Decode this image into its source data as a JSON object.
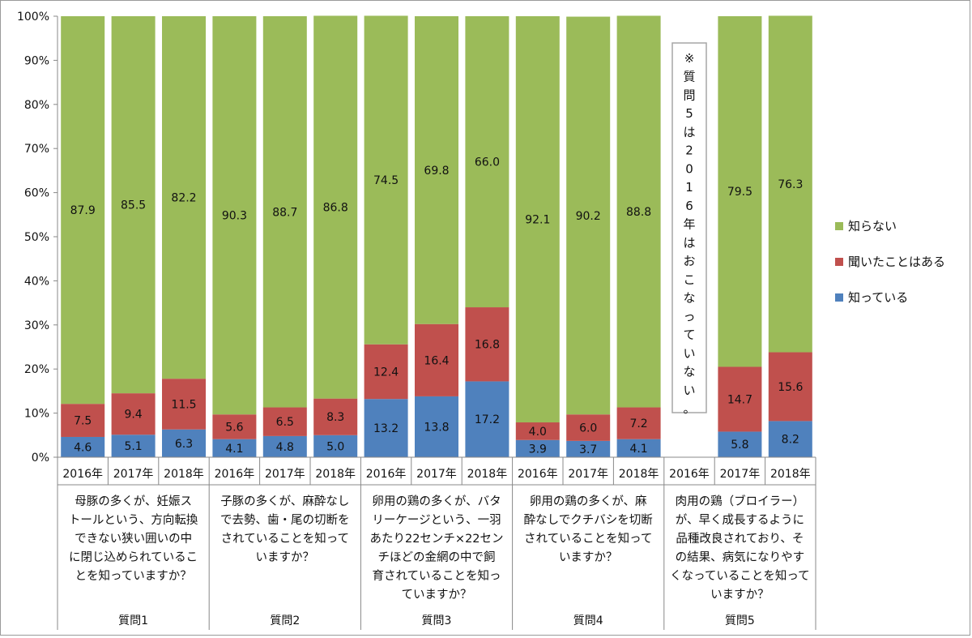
{
  "chart_data": {
    "type": "bar",
    "stacked": true,
    "percent": true,
    "ylim": [
      0,
      100
    ],
    "y_ticks": [
      "0%",
      "10%",
      "20%",
      "30%",
      "40%",
      "50%",
      "60%",
      "70%",
      "80%",
      "90%",
      "100%"
    ],
    "series": [
      {
        "name": "知っている",
        "color": "#4f81bd"
      },
      {
        "name": "聞いたことはある",
        "color": "#c0504d"
      },
      {
        "name": "知らない",
        "color": "#9bbb59"
      }
    ],
    "legend_position": "right",
    "groups": [
      {
        "name": "質問1",
        "description": [
          "母豚の多くが、妊娠ス",
          "トールという、方向転換",
          "できない狭い囲いの中",
          "に閉じ込められているこ",
          "とを知っていますか？"
        ],
        "bars": [
          {
            "year": "2016年",
            "values": [
              4.6,
              7.5,
              87.9
            ]
          },
          {
            "year": "2017年",
            "values": [
              5.1,
              9.4,
              85.5
            ]
          },
          {
            "year": "2018年",
            "values": [
              6.3,
              11.5,
              82.2
            ]
          }
        ]
      },
      {
        "name": "質問2",
        "description": [
          "子豚の多くが、麻酔なし",
          "で去勢、歯・尾の切断を",
          "されていることを知って",
          "いますか？"
        ],
        "bars": [
          {
            "year": "2016年",
            "values": [
              4.1,
              5.6,
              90.3
            ]
          },
          {
            "year": "2017年",
            "values": [
              4.8,
              6.5,
              88.7
            ]
          },
          {
            "year": "2018年",
            "values": [
              5.0,
              8.3,
              86.8
            ]
          }
        ]
      },
      {
        "name": "質問3",
        "description": [
          "卵用の鶏の多くが、バタ",
          "リーケージという、一羽",
          "あたり22センチ×22セン",
          "チほどの金網の中で飼",
          "育されていることを知っ",
          "ていますか？"
        ],
        "bars": [
          {
            "year": "2016年",
            "values": [
              13.2,
              12.4,
              74.5
            ]
          },
          {
            "year": "2017年",
            "values": [
              13.8,
              16.4,
              69.8
            ]
          },
          {
            "year": "2018年",
            "values": [
              17.2,
              16.8,
              66.0
            ]
          }
        ]
      },
      {
        "name": "質問4",
        "description": [
          "卵用の鶏の多くが、麻",
          "酔なしでクチバシを切断",
          "されていることを知って",
          "いますか？"
        ],
        "bars": [
          {
            "year": "2016年",
            "values": [
              3.9,
              4.0,
              92.1
            ]
          },
          {
            "year": "2017年",
            "values": [
              3.7,
              6.0,
              90.2
            ]
          },
          {
            "year": "2018年",
            "values": [
              4.1,
              7.2,
              88.8
            ]
          }
        ]
      },
      {
        "name": "質問5",
        "description": [
          "肉用の鶏（ブロイラー）",
          "が、早く成長するように",
          "品種改良されており、そ",
          "の結果、病気になりやす",
          "くなっていることを知って",
          "いますか？"
        ],
        "bars": [
          {
            "year": "2016年",
            "values": null
          },
          {
            "year": "2017年",
            "values": [
              5.8,
              14.7,
              79.5
            ]
          },
          {
            "year": "2018年",
            "values": [
              8.2,
              15.6,
              76.3
            ]
          }
        ]
      }
    ],
    "annotation": [
      "※",
      "質",
      "問",
      "5",
      "は",
      "2",
      "0",
      "1",
      "6",
      "年",
      "は",
      "お",
      "こ",
      "な",
      "っ",
      "て",
      "い",
      "な",
      "い",
      "。"
    ]
  }
}
